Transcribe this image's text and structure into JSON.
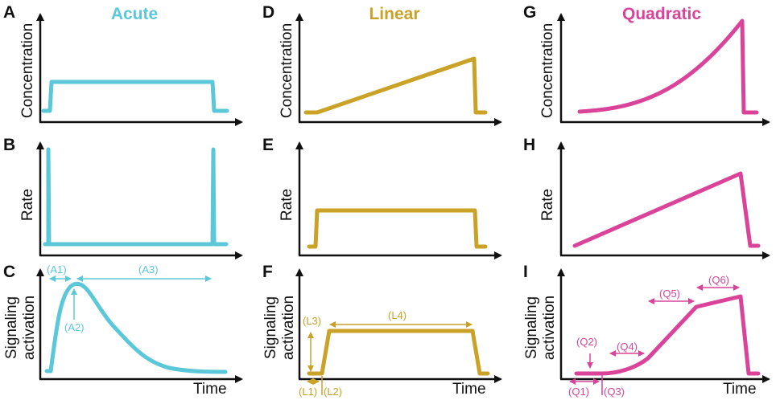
{
  "columns": [
    {
      "title": "Acute",
      "color": "#5BC8D9"
    },
    {
      "title": "Linear",
      "color": "#C9A227"
    },
    {
      "title": "Quadratic",
      "color": "#D9449A"
    }
  ],
  "panels": {
    "A": "A",
    "B": "B",
    "C": "C",
    "D": "D",
    "E": "E",
    "F": "F",
    "G": "G",
    "H": "H",
    "I": "I"
  },
  "axis_labels": {
    "concentration": "Concentration",
    "rate": "Rate",
    "signaling_line1": "Signaling",
    "signaling_line2": "activation",
    "time": "Time"
  },
  "annotations": {
    "acute": {
      "a1": "(A1)",
      "a2": "(A2)",
      "a3": "(A3)"
    },
    "linear": {
      "l1": "(L1)",
      "l2": "(L2)",
      "l3": "(L3)",
      "l4": "(L4)"
    },
    "quadratic": {
      "q1": "(Q1)",
      "q2": "(Q2)",
      "q3": "(Q3)",
      "q4": "(Q4)",
      "q5": "(Q5)",
      "q6": "(Q6)"
    }
  },
  "colors": {
    "axis": "#111111"
  }
}
